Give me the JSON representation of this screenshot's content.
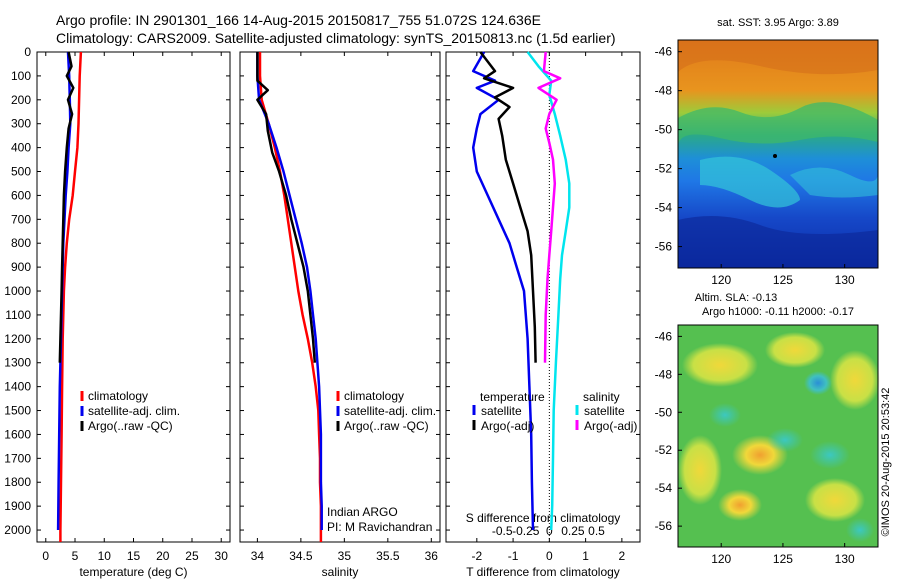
{
  "header": {
    "line1": "Argo profile: IN 2901301_166 14-Aug-2015 20150817_755 51.072S 124.636E",
    "line2": "Climatology: CARS2009. Satellite-adjusted climatology: synTS_20150813.nc (1.5d earlier)"
  },
  "colors": {
    "climatology": "#ff0000",
    "satellite": "#0000ee",
    "argo": "#000000",
    "sat_salinity": "#00e5ee",
    "argo_salinity": "#ff00ff"
  },
  "chart_data": [
    {
      "type": "line",
      "name": "temperature-profile",
      "xlabel": "temperature (deg C)",
      "xlim": [
        -1.5,
        31.5
      ],
      "xticks": [
        0,
        5,
        10,
        15,
        20,
        25,
        30
      ],
      "ylim": [
        2050,
        0
      ],
      "yticks": [
        0,
        100,
        200,
        300,
        400,
        500,
        600,
        700,
        800,
        900,
        1000,
        1100,
        1200,
        1300,
        1400,
        1500,
        1600,
        1700,
        1800,
        1900,
        2000
      ],
      "legend": [
        "climatology",
        "satellite-adj. clim.",
        "Argo(..raw -QC)"
      ],
      "series": [
        {
          "name": "climatology",
          "color": "#ff0000",
          "points": [
            [
              6.0,
              0
            ],
            [
              5.9,
              50
            ],
            [
              5.8,
              100
            ],
            [
              5.7,
              200
            ],
            [
              5.6,
              300
            ],
            [
              5.4,
              400
            ],
            [
              5.0,
              500
            ],
            [
              4.6,
              600
            ],
            [
              4.0,
              700
            ],
            [
              3.6,
              800
            ],
            [
              3.3,
              900
            ],
            [
              3.1,
              1000
            ],
            [
              2.9,
              1200
            ],
            [
              2.8,
              1400
            ],
            [
              2.7,
              1600
            ],
            [
              2.6,
              1800
            ],
            [
              2.5,
              2000
            ],
            [
              2.5,
              2050
            ]
          ]
        },
        {
          "name": "satellite-adj. clim.",
          "color": "#0000ee",
          "points": [
            [
              3.8,
              0
            ],
            [
              3.9,
              50
            ],
            [
              4.0,
              100
            ],
            [
              4.1,
              200
            ],
            [
              4.2,
              300
            ],
            [
              3.9,
              400
            ],
            [
              3.7,
              500
            ],
            [
              3.4,
              600
            ],
            [
              3.2,
              700
            ],
            [
              3.0,
              800
            ],
            [
              2.9,
              900
            ],
            [
              2.8,
              1000
            ],
            [
              2.6,
              1200
            ],
            [
              2.4,
              1400
            ],
            [
              2.3,
              1600
            ],
            [
              2.2,
              1800
            ],
            [
              2.1,
              2000
            ]
          ]
        },
        {
          "name": "Argo(..raw -QC)",
          "color": "#000000",
          "points": [
            [
              3.9,
              0
            ],
            [
              4.4,
              60
            ],
            [
              3.6,
              100
            ],
            [
              4.7,
              150
            ],
            [
              3.8,
              200
            ],
            [
              4.5,
              260
            ],
            [
              3.9,
              320
            ],
            [
              3.6,
              400
            ],
            [
              3.3,
              500
            ],
            [
              3.1,
              600
            ],
            [
              3.0,
              700
            ],
            [
              2.9,
              800
            ],
            [
              2.8,
              900
            ],
            [
              2.7,
              1000
            ],
            [
              2.6,
              1100
            ],
            [
              2.5,
              1200
            ],
            [
              2.4,
              1300
            ]
          ]
        }
      ]
    },
    {
      "type": "line",
      "name": "salinity-profile",
      "xlabel": "salinity",
      "xlim": [
        33.8,
        36.1
      ],
      "xticks": [
        34,
        34.5,
        35,
        35.5,
        36
      ],
      "ylim": [
        2050,
        0
      ],
      "legend": [
        "climatology",
        "satellite-adj. clim.",
        "Argo(..raw -QC)"
      ],
      "annotations": [
        "Indian ARGO",
        "PI: M Ravichandran"
      ],
      "series": [
        {
          "name": "climatology",
          "color": "#ff0000",
          "points": [
            [
              34.03,
              0
            ],
            [
              34.03,
              100
            ],
            [
              34.05,
              200
            ],
            [
              34.13,
              300
            ],
            [
              34.2,
              400
            ],
            [
              34.26,
              500
            ],
            [
              34.31,
              600
            ],
            [
              34.35,
              700
            ],
            [
              34.39,
              800
            ],
            [
              34.43,
              900
            ],
            [
              34.47,
              1000
            ],
            [
              34.52,
              1100
            ],
            [
              34.58,
              1200
            ],
            [
              34.63,
              1300
            ],
            [
              34.67,
              1400
            ],
            [
              34.7,
              1500
            ],
            [
              34.71,
              1600
            ],
            [
              34.72,
              1700
            ],
            [
              34.72,
              1800
            ],
            [
              34.73,
              1900
            ],
            [
              34.73,
              2000
            ],
            [
              34.73,
              2050
            ]
          ]
        },
        {
          "name": "satellite-adj. clim.",
          "color": "#0000ee",
          "points": [
            [
              34.0,
              0
            ],
            [
              34.0,
              100
            ],
            [
              34.02,
              200
            ],
            [
              34.13,
              300
            ],
            [
              34.22,
              400
            ],
            [
              34.3,
              500
            ],
            [
              34.37,
              600
            ],
            [
              34.44,
              700
            ],
            [
              34.51,
              800
            ],
            [
              34.57,
              900
            ],
            [
              34.61,
              1000
            ],
            [
              34.64,
              1100
            ],
            [
              34.67,
              1200
            ],
            [
              34.69,
              1300
            ],
            [
              34.71,
              1400
            ],
            [
              34.72,
              1500
            ],
            [
              34.73,
              1600
            ],
            [
              34.73,
              1700
            ],
            [
              34.73,
              1800
            ],
            [
              34.74,
              1900
            ],
            [
              34.74,
              2000
            ]
          ]
        },
        {
          "name": "Argo(..raw -QC)",
          "color": "#000000",
          "points": [
            [
              34.0,
              0
            ],
            [
              34.0,
              120
            ],
            [
              34.12,
              160
            ],
            [
              34.0,
              200
            ],
            [
              34.1,
              260
            ],
            [
              34.12,
              330
            ],
            [
              34.17,
              420
            ],
            [
              34.25,
              500
            ],
            [
              34.33,
              600
            ],
            [
              34.39,
              700
            ],
            [
              34.46,
              800
            ],
            [
              34.53,
              900
            ],
            [
              34.58,
              1000
            ],
            [
              34.61,
              1100
            ],
            [
              34.64,
              1200
            ],
            [
              34.66,
              1300
            ]
          ]
        }
      ]
    },
    {
      "type": "line",
      "name": "difference-profile",
      "xlabel": "T difference from climatology",
      "xlabel_top": "S difference from climatology",
      "xlim": [
        -2.85,
        2.5
      ],
      "xticks": [
        -2,
        -1,
        0,
        1,
        2
      ],
      "top_ticks": [
        "-0.5",
        "-0.25",
        "0",
        "0.25",
        "0.5"
      ],
      "ylim": [
        2050,
        0
      ],
      "legend_temperature": {
        "heading": "temperature",
        "items": [
          "satellite",
          "Argo(-adj)"
        ]
      },
      "legend_salinity": {
        "heading": "salinity",
        "items": [
          "satellite",
          "Argo(-adj)"
        ]
      },
      "series": [
        {
          "name": "T satellite",
          "color": "#0000ee",
          "points": [
            [
              -1.8,
              0
            ],
            [
              -2.1,
              80
            ],
            [
              -1.5,
              120
            ],
            [
              -2.0,
              150
            ],
            [
              -1.4,
              200
            ],
            [
              -1.9,
              260
            ],
            [
              -2.0,
              320
            ],
            [
              -2.1,
              400
            ],
            [
              -2.0,
              500
            ],
            [
              -1.7,
              600
            ],
            [
              -1.4,
              700
            ],
            [
              -1.1,
              800
            ],
            [
              -0.9,
              900
            ],
            [
              -0.7,
              1000
            ],
            [
              -0.6,
              1200
            ],
            [
              -0.55,
              1400
            ],
            [
              -0.5,
              1600
            ],
            [
              -0.48,
              1800
            ],
            [
              -0.45,
              2000
            ]
          ]
        },
        {
          "name": "T Argo(-adj)",
          "color": "#000000",
          "points": [
            [
              -1.9,
              0
            ],
            [
              -1.5,
              80
            ],
            [
              -1.8,
              110
            ],
            [
              -1.0,
              150
            ],
            [
              -1.5,
              190
            ],
            [
              -1.1,
              230
            ],
            [
              -1.4,
              280
            ],
            [
              -1.3,
              350
            ],
            [
              -1.2,
              450
            ],
            [
              -1.0,
              550
            ],
            [
              -0.8,
              650
            ],
            [
              -0.6,
              750
            ],
            [
              -0.5,
              850
            ],
            [
              -0.45,
              1000
            ],
            [
              -0.4,
              1150
            ],
            [
              -0.38,
              1300
            ]
          ]
        },
        {
          "name": "S satellite",
          "color": "#00e5ee",
          "points": [
            [
              -0.6,
              0
            ],
            [
              -0.3,
              60
            ],
            [
              0.05,
              120
            ],
            [
              0.0,
              180
            ],
            [
              0.15,
              260
            ],
            [
              0.3,
              350
            ],
            [
              0.45,
              450
            ],
            [
              0.55,
              550
            ],
            [
              0.55,
              650
            ],
            [
              0.45,
              750
            ],
            [
              0.35,
              850
            ],
            [
              0.3,
              950
            ],
            [
              0.25,
              1100
            ],
            [
              0.18,
              1300
            ],
            [
              0.12,
              1500
            ],
            [
              0.1,
              1700
            ],
            [
              0.08,
              1900
            ],
            [
              0.05,
              2000
            ]
          ]
        },
        {
          "name": "S Argo(-adj)",
          "color": "#ff00ff",
          "points": [
            [
              -0.1,
              0
            ],
            [
              -0.15,
              80
            ],
            [
              0.3,
              110
            ],
            [
              -0.3,
              150
            ],
            [
              0.2,
              200
            ],
            [
              0.0,
              260
            ],
            [
              -0.1,
              320
            ],
            [
              0.0,
              380
            ],
            [
              0.1,
              450
            ],
            [
              0.15,
              550
            ],
            [
              0.1,
              650
            ],
            [
              0.05,
              750
            ],
            [
              0.0,
              850
            ],
            [
              -0.05,
              950
            ],
            [
              -0.1,
              1100
            ],
            [
              -0.12,
              1300
            ]
          ]
        }
      ]
    },
    {
      "type": "heatmap",
      "name": "sst-map",
      "title": "sat. SST: 3.95  Argo: 3.89",
      "xticks": [
        120,
        125,
        130
      ],
      "yticks": [
        -46,
        -48,
        -50,
        -52,
        -54,
        -56
      ],
      "xlim": [
        116.5,
        132.7
      ],
      "ylim": [
        -57.1,
        -45.4
      ]
    },
    {
      "type": "heatmap",
      "name": "sla-map",
      "title_line1": "Altim. SLA: -0.13",
      "title_line2": "Argo h1000: -0.11  h2000: -0.17",
      "xticks": [
        120,
        125,
        130
      ],
      "yticks": [
        -46,
        -48,
        -50,
        -52,
        -54,
        -56
      ],
      "xlim": [
        116.5,
        132.7
      ],
      "ylim": [
        -57.1,
        -45.4
      ]
    }
  ],
  "footer": {
    "credit": "©IMOS 20-Aug-2015 20:53:42"
  }
}
